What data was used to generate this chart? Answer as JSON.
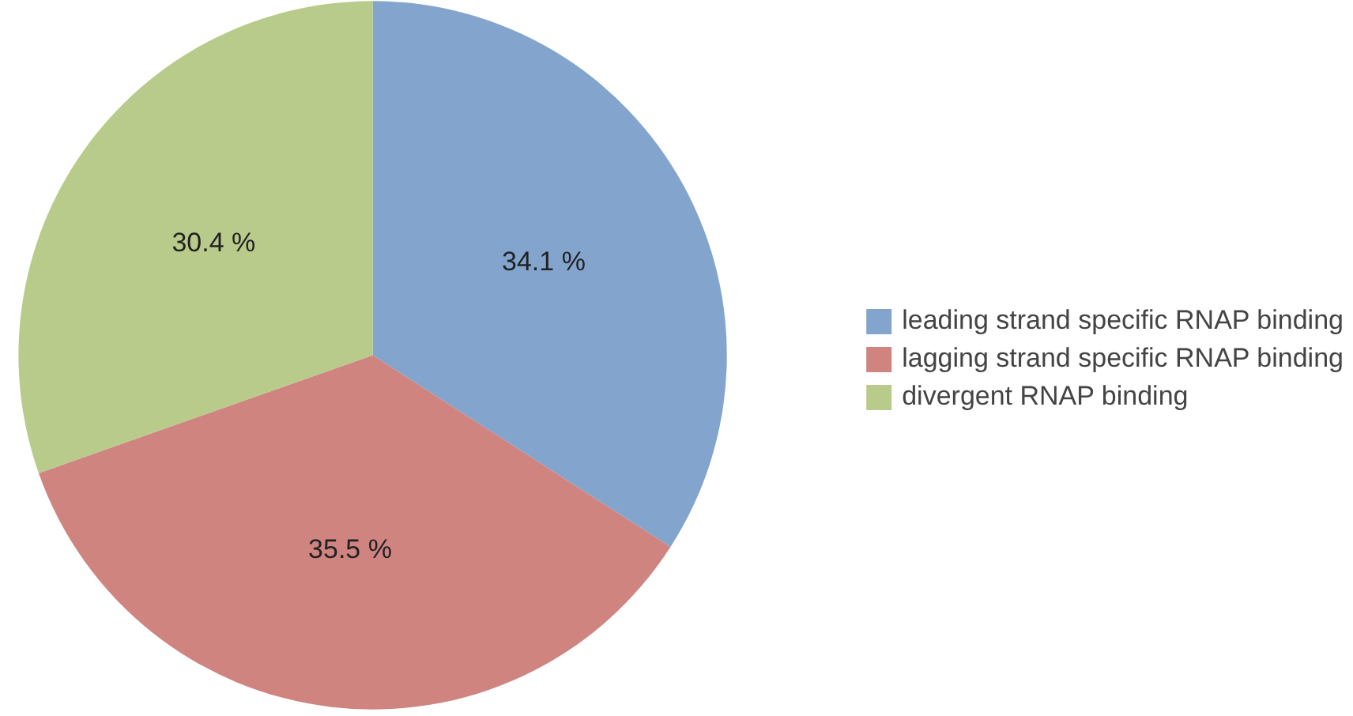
{
  "chart_data": {
    "type": "pie",
    "categories": [
      "leading strand specific RNAP binding",
      "lagging strand specific RNAP binding",
      "divergent RNAP binding"
    ],
    "values": [
      34.1,
      35.5,
      30.4
    ],
    "colors": [
      "#83a5cd",
      "#cf8480",
      "#b9cb8a"
    ],
    "value_labels": [
      "34.1 %",
      "35.5 %",
      "30.4 %"
    ],
    "legend": "right"
  }
}
